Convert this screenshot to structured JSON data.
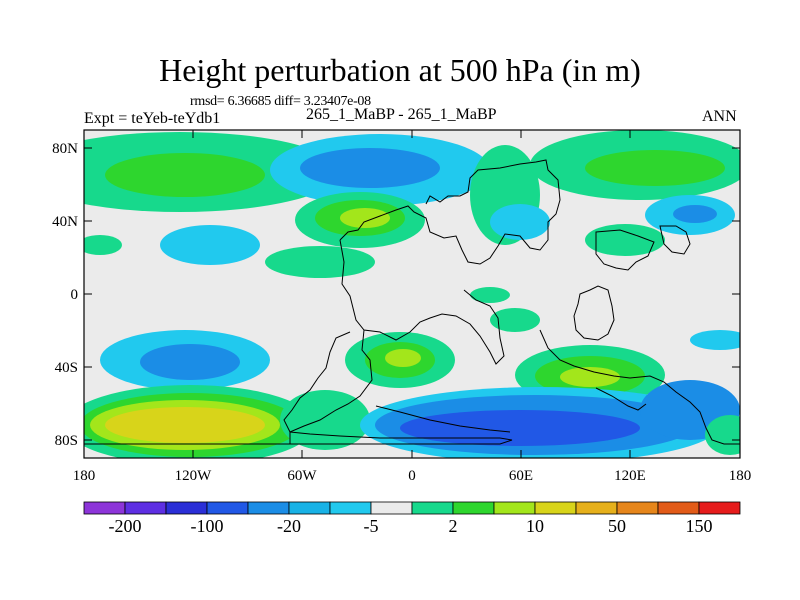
{
  "title": "Height perturbation at 500 hPa (in m)",
  "stats": "rmsd= 6.36685 diff= 3.23407e-08",
  "left_label": "Expt = teYeb-teYdb1",
  "center_label": "265_1_MaBP - 265_1_MaBP",
  "right_label": "ANN",
  "lat_ticks": [
    "80N",
    "40N",
    "0",
    "40S",
    "80S"
  ],
  "lon_ticks": [
    "180",
    "120W",
    "60W",
    "0",
    "60E",
    "120E",
    "180"
  ],
  "colorbar": {
    "colors": [
      "#8d35d9",
      "#5e2fe3",
      "#2b2fd7",
      "#2158e6",
      "#1b8de6",
      "#18b2e6",
      "#21c9ee",
      "#ebebeb",
      "#17d98c",
      "#2ed62e",
      "#a3e61b",
      "#d8d41a",
      "#e6b01b",
      "#e6861b",
      "#e25b18",
      "#e61c1c"
    ],
    "labels": [
      "-200",
      "-100",
      "-20",
      "-5",
      "2",
      "10",
      "50",
      "150"
    ]
  },
  "colors": {
    "background": "#ebebeb",
    "neg_light": "#21c9ee",
    "neg_mid": "#1b8de6",
    "neg_strong": "#2158e6",
    "pos_light": "#17d98c",
    "pos_mid": "#2ed62e",
    "pos_strong": "#a3e61b",
    "pos_max": "#d8d41a"
  }
}
